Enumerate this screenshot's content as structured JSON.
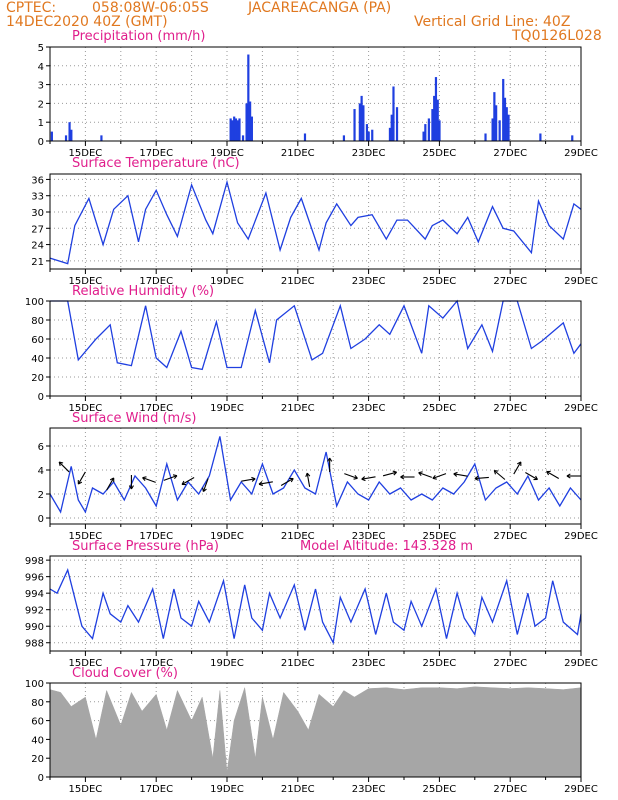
{
  "header": {
    "source": "CPTEC:",
    "coords": "058:08W-06:05S",
    "station": "JACAREACANGA (PA)",
    "init_time": "14DEC2020 40Z (GMT)",
    "grid_note": "Vertical Grid Line: 40Z",
    "code": "TQ0126L028"
  },
  "colors": {
    "header": "#e07820",
    "titles": "#e01e8c",
    "series": "#1f3fe0",
    "cloud": "#a6a6a6"
  },
  "x_tick_labels": [
    "15DEC",
    "17DEC",
    "19DEC",
    "21DEC",
    "23DEC",
    "25DEC",
    "27DEC",
    "29DEC"
  ],
  "chart_data": [
    {
      "type": "bar",
      "title": "Precipitation (mm/h)",
      "y_ticks": [
        0,
        1,
        2,
        3,
        4,
        5
      ],
      "ylim": [
        0,
        5
      ],
      "x_range_days": [
        14.0,
        29.0
      ],
      "x": [
        14.05,
        14.45,
        14.55,
        14.6,
        15.45,
        19.1,
        19.15,
        19.2,
        19.25,
        19.3,
        19.35,
        19.45,
        19.55,
        19.6,
        19.65,
        19.7,
        21.2,
        22.3,
        22.6,
        22.75,
        22.8,
        22.85,
        22.95,
        23.0,
        23.1,
        23.6,
        23.65,
        23.7,
        23.8,
        24.55,
        24.6,
        24.7,
        24.8,
        24.85,
        24.9,
        24.95,
        25.0,
        26.3,
        26.5,
        26.55,
        26.6,
        26.7,
        26.8,
        26.85,
        26.9,
        26.95,
        27.85,
        28.75
      ],
      "values": [
        0.5,
        0.3,
        1.0,
        0.6,
        0.3,
        1.2,
        1.1,
        1.3,
        1.2,
        1.1,
        1.2,
        0.3,
        2.0,
        4.6,
        2.1,
        1.3,
        0.4,
        0.3,
        1.7,
        2.0,
        2.4,
        1.9,
        0.9,
        0.5,
        0.6,
        0.7,
        1.4,
        2.9,
        1.8,
        0.5,
        0.9,
        1.2,
        1.7,
        2.4,
        3.4,
        2.2,
        1.1,
        0.4,
        1.2,
        2.6,
        1.9,
        1.1,
        3.3,
        2.3,
        1.8,
        1.4,
        0.4,
        0.3
      ]
    },
    {
      "type": "line",
      "title": "Surface Temperature (nC)",
      "y_ticks": [
        21,
        24,
        27,
        30,
        33,
        36
      ],
      "ylim": [
        19.5,
        37
      ],
      "x": [
        14.0,
        14.5,
        14.7,
        15.1,
        15.5,
        15.8,
        16.2,
        16.5,
        16.7,
        17.0,
        17.3,
        17.6,
        18.0,
        18.4,
        18.6,
        19.0,
        19.3,
        19.6,
        20.1,
        20.5,
        20.8,
        21.1,
        21.6,
        21.8,
        22.1,
        22.5,
        22.7,
        23.1,
        23.5,
        23.8,
        24.1,
        24.6,
        24.8,
        25.1,
        25.5,
        25.8,
        26.1,
        26.5,
        26.8,
        27.1,
        27.6,
        27.8,
        28.1,
        28.5,
        28.8,
        29.0
      ],
      "values": [
        21.5,
        20.5,
        27.5,
        32.5,
        24.0,
        30.5,
        33.0,
        24.5,
        30.5,
        34.0,
        29.5,
        25.5,
        35.0,
        28.5,
        26.0,
        35.5,
        28.0,
        25.0,
        33.5,
        23.0,
        29.0,
        32.5,
        23.0,
        28.0,
        31.5,
        27.5,
        29.0,
        29.5,
        25.0,
        28.5,
        28.5,
        25.0,
        27.5,
        28.5,
        26.0,
        29.0,
        24.5,
        31.0,
        27.0,
        26.5,
        22.5,
        32.0,
        27.5,
        25.0,
        31.5,
        30.5
      ]
    },
    {
      "type": "line",
      "title": "Relative Humidity (%)",
      "y_ticks": [
        0,
        20,
        40,
        60,
        80,
        100
      ],
      "ylim": [
        0,
        100
      ],
      "x": [
        14.0,
        14.5,
        14.8,
        15.3,
        15.7,
        15.9,
        16.3,
        16.7,
        17.0,
        17.3,
        17.7,
        18.0,
        18.3,
        18.7,
        19.0,
        19.4,
        19.8,
        20.2,
        20.4,
        20.9,
        21.4,
        21.7,
        22.2,
        22.5,
        22.9,
        23.3,
        23.6,
        24.0,
        24.5,
        24.7,
        25.1,
        25.5,
        25.8,
        26.2,
        26.5,
        26.8,
        27.2,
        27.6,
        27.9,
        28.5,
        28.8,
        29.0
      ],
      "values": [
        100,
        100,
        38,
        60,
        75,
        35,
        32,
        95,
        40,
        30,
        68,
        30,
        28,
        78,
        30,
        30,
        90,
        35,
        80,
        95,
        38,
        45,
        95,
        50,
        60,
        75,
        65,
        95,
        45,
        95,
        82,
        100,
        50,
        75,
        47,
        100,
        100,
        50,
        58,
        77,
        45,
        55
      ]
    },
    {
      "type": "line",
      "title": "Surface Wind (m/s)",
      "y_ticks": [
        0,
        2,
        4,
        6
      ],
      "ylim": [
        -0.5,
        7.5
      ],
      "x": [
        14.0,
        14.3,
        14.6,
        14.8,
        15.0,
        15.2,
        15.5,
        15.8,
        16.1,
        16.4,
        16.7,
        17.0,
        17.3,
        17.6,
        17.9,
        18.2,
        18.5,
        18.8,
        19.1,
        19.4,
        19.7,
        20.0,
        20.3,
        20.6,
        20.9,
        21.2,
        21.5,
        21.8,
        22.1,
        22.4,
        22.7,
        23.0,
        23.3,
        23.6,
        23.9,
        24.2,
        24.5,
        24.8,
        25.1,
        25.4,
        25.7,
        26.0,
        26.3,
        26.6,
        26.9,
        27.2,
        27.5,
        27.8,
        28.1,
        28.4,
        28.7,
        29.0
      ],
      "values": [
        2.0,
        0.5,
        4.3,
        1.5,
        0.5,
        2.5,
        2.0,
        3.0,
        1.5,
        3.5,
        2.5,
        1.0,
        4.5,
        1.5,
        3.0,
        2.0,
        3.5,
        6.8,
        1.5,
        3.0,
        2.0,
        4.5,
        2.0,
        2.5,
        4.0,
        2.5,
        2.0,
        5.5,
        1.0,
        3.0,
        2.0,
        1.5,
        3.0,
        2.0,
        2.5,
        1.5,
        2.0,
        1.5,
        2.5,
        2.0,
        3.0,
        4.5,
        1.5,
        2.5,
        3.0,
        2.0,
        3.5,
        1.5,
        2.5,
        1.0,
        2.5,
        1.5
      ]
    },
    {
      "type": "line",
      "title": "Surface Pressure (hPa)",
      "annotation": "Model Altitude: 143.328 m",
      "y_ticks": [
        988,
        990,
        992,
        994,
        996,
        998
      ],
      "ylim": [
        987,
        998.5
      ],
      "x": [
        14.0,
        14.2,
        14.5,
        14.9,
        15.2,
        15.5,
        15.7,
        16.0,
        16.2,
        16.5,
        16.9,
        17.2,
        17.5,
        17.7,
        18.0,
        18.2,
        18.5,
        18.9,
        19.2,
        19.5,
        19.7,
        20.0,
        20.2,
        20.5,
        20.9,
        21.2,
        21.5,
        21.7,
        22.0,
        22.2,
        22.5,
        22.9,
        23.2,
        23.5,
        23.7,
        24.0,
        24.2,
        24.5,
        24.9,
        25.2,
        25.5,
        25.7,
        26.0,
        26.2,
        26.5,
        26.9,
        27.2,
        27.5,
        27.7,
        28.0,
        28.2,
        28.5,
        28.9,
        29.0
      ],
      "values": [
        994.5,
        994.0,
        996.8,
        990.0,
        988.5,
        994.0,
        991.5,
        990.5,
        992.5,
        990.5,
        994.5,
        988.5,
        994.5,
        991.0,
        990.0,
        993.0,
        990.5,
        995.5,
        988.5,
        995.0,
        991.0,
        989.5,
        994.0,
        991.0,
        995.0,
        989.5,
        994.5,
        990.5,
        988.0,
        993.5,
        990.5,
        994.5,
        989.0,
        994.0,
        990.5,
        989.5,
        993.0,
        990.0,
        994.5,
        988.5,
        994.0,
        991.0,
        989.0,
        993.5,
        990.5,
        995.5,
        989.0,
        994.0,
        990.0,
        991.0,
        995.5,
        990.5,
        989.0,
        991.5
      ]
    },
    {
      "type": "area",
      "title": "Cloud Cover (%)",
      "y_ticks": [
        0,
        20,
        40,
        60,
        80,
        100
      ],
      "ylim": [
        0,
        100
      ],
      "x": [
        14.0,
        14.3,
        14.6,
        15.0,
        15.3,
        15.6,
        16.0,
        16.3,
        16.6,
        17.0,
        17.3,
        17.6,
        18.0,
        18.3,
        18.6,
        18.8,
        19.0,
        19.2,
        19.5,
        19.8,
        20.0,
        20.3,
        20.6,
        21.0,
        21.3,
        21.6,
        22.0,
        22.3,
        22.6,
        23.0,
        23.5,
        24.0,
        24.5,
        25.0,
        25.5,
        26.0,
        26.5,
        27.0,
        27.5,
        28.0,
        28.5,
        29.0
      ],
      "values": [
        93,
        90,
        75,
        85,
        40,
        92,
        55,
        90,
        70,
        88,
        50,
        92,
        60,
        85,
        20,
        92,
        5,
        60,
        95,
        20,
        85,
        40,
        90,
        70,
        50,
        88,
        75,
        92,
        85,
        94,
        95,
        93,
        95,
        95,
        94,
        96,
        95,
        94,
        95,
        94,
        93,
        95
      ]
    }
  ]
}
